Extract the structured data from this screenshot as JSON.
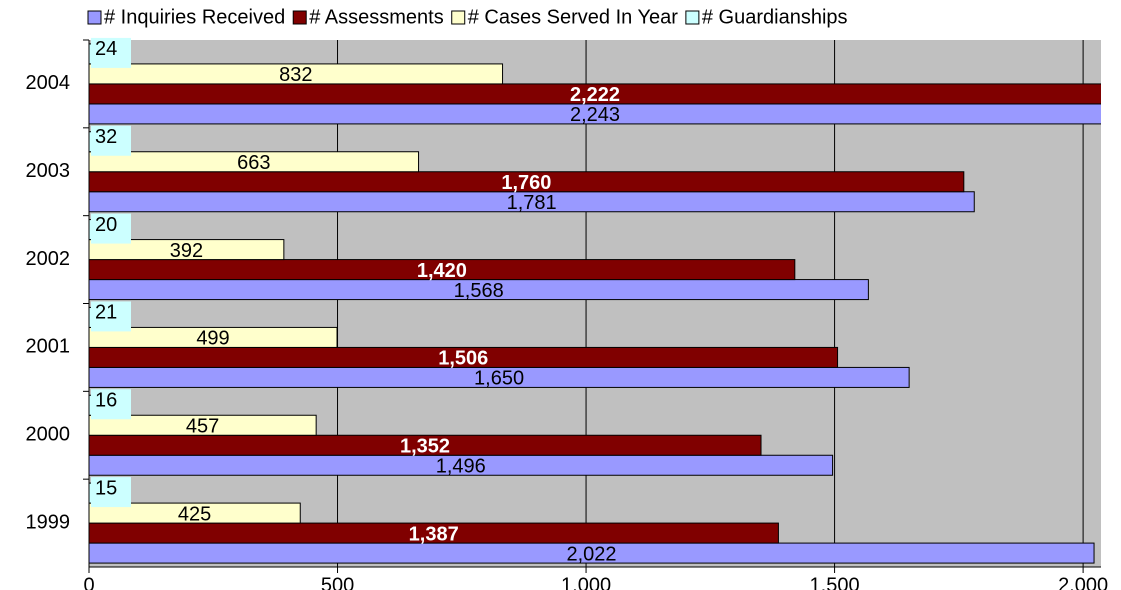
{
  "chart_data": {
    "type": "barh",
    "categories": [
      "1999",
      "2000",
      "2001",
      "2002",
      "2003",
      "2004"
    ],
    "series": [
      {
        "name": "# Inquiries Received",
        "color": "#9999ff",
        "values": [
          2022,
          1496,
          1650,
          1568,
          1781,
          2243
        ],
        "value_labels": [
          "2,022",
          "1,496",
          "1,650",
          "1,568",
          "1,781",
          "2,243"
        ]
      },
      {
        "name": "# Assessments",
        "color": "#800000",
        "values": [
          1387,
          1352,
          1506,
          1420,
          1760,
          2222
        ],
        "value_labels": [
          "1,387",
          "1,352",
          "1,506",
          "1,420",
          "1,760",
          "2,222"
        ]
      },
      {
        "name": "# Cases Served In Year",
        "color": "#ffffcc",
        "values": [
          425,
          457,
          499,
          392,
          663,
          832
        ]
      },
      {
        "name": "# Guardianships",
        "color": "#ccffff",
        "values": [
          15,
          16,
          21,
          20,
          32,
          24
        ]
      }
    ],
    "xlim": [
      0,
      2036
    ],
    "xticks": [
      0,
      500,
      {
        "value": 1000,
        "label": "1,000"
      },
      {
        "value": 1500,
        "label": "1,500"
      },
      {
        "value": 2000,
        "label": "2,000"
      }
    ],
    "grid": true,
    "legend": "top",
    "plot_background": "#c0c0c0"
  }
}
